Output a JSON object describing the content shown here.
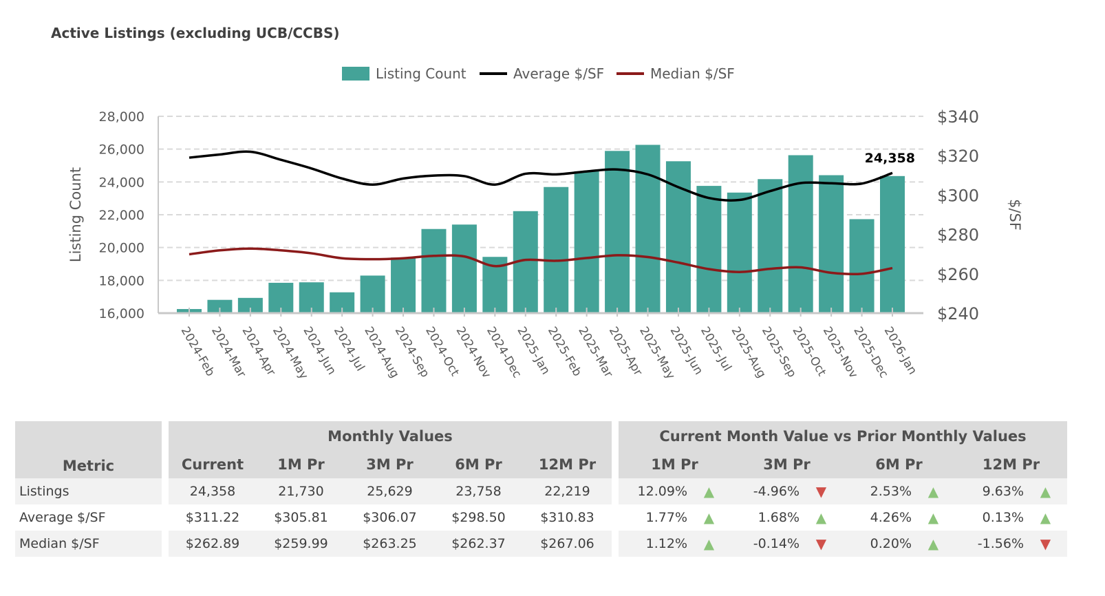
{
  "title": "Active Listings (excluding UCB/CCBS)",
  "chart_data": {
    "type": "bar+line",
    "title": "Active Listings (excluding UCB/CCBS)",
    "legend": {
      "placement": "top-center",
      "entries": [
        "Listing Count",
        "Average $/SF",
        "Median $/SF"
      ]
    },
    "categories": [
      "2024-Feb",
      "2024-Mar",
      "2024-Apr",
      "2024-May",
      "2024-Jun",
      "2024-Jul",
      "2024-Aug",
      "2024-Sep",
      "2024-Oct",
      "2024-Nov",
      "2024-Dec",
      "2025-Jan",
      "2025-Feb",
      "2025-Mar",
      "2025-Apr",
      "2025-May",
      "2025-Jun",
      "2025-Jul",
      "2025-Aug",
      "2025-Sep",
      "2025-Oct",
      "2025-Nov",
      "2025-Dec",
      "2026-Jan"
    ],
    "ylabel": "Listing Count",
    "y2label": "$/SF",
    "ylim": [
      16000,
      28000
    ],
    "y2lim": [
      240,
      340
    ],
    "yticks": [
      "16,000",
      "18,000",
      "20,000",
      "22,000",
      "24,000",
      "26,000",
      "28,000"
    ],
    "y2ticks": [
      "$240",
      "$260",
      "$280",
      "$300",
      "$320",
      "$340"
    ],
    "grid": true,
    "series": [
      {
        "name": "Listing Count",
        "type": "bar",
        "axis": "left",
        "color": "#44a398",
        "values": [
          16250,
          16810,
          16930,
          17850,
          17880,
          17270,
          18290,
          19390,
          21130,
          21400,
          19430,
          22219,
          23690,
          24650,
          25890,
          26260,
          25260,
          23758,
          23350,
          24170,
          25629,
          24410,
          21730,
          24358
        ]
      },
      {
        "name": "Average $/SF",
        "type": "line",
        "axis": "right",
        "color": "#000000",
        "values": [
          319.0,
          320.6,
          322.0,
          317.9,
          313.5,
          308.4,
          305.3,
          308.4,
          309.9,
          309.6,
          305.3,
          310.83,
          310.5,
          312.0,
          313.0,
          310.5,
          304.0,
          298.5,
          297.5,
          302.0,
          306.07,
          306.0,
          305.81,
          311.22
        ]
      },
      {
        "name": "Median $/SF",
        "type": "line",
        "axis": "right",
        "color": "#8b1a1a",
        "values": [
          269.9,
          271.9,
          272.8,
          271.9,
          270.4,
          267.9,
          267.4,
          267.9,
          269.1,
          268.8,
          263.9,
          267.06,
          266.6,
          268.0,
          269.4,
          268.5,
          265.7,
          262.37,
          260.9,
          262.5,
          263.25,
          260.5,
          259.99,
          262.89
        ]
      }
    ],
    "annotation": "24,358"
  },
  "table": {
    "group_monthly": "Monthly Values",
    "group_compare": "Current Month Value vs Prior Monthly Values",
    "metric_header": "Metric",
    "monthly_headers": [
      "Current",
      "1M Pr",
      "3M Pr",
      "6M Pr",
      "12M Pr"
    ],
    "compare_headers": [
      "1M Pr",
      "3M Pr",
      "6M Pr",
      "12M Pr"
    ],
    "rows": [
      {
        "metric": "Listings",
        "values": [
          "24,358",
          "21,730",
          "25,629",
          "23,758",
          "22,219"
        ],
        "changes": [
          {
            "v": "12.09%",
            "dir": "up"
          },
          {
            "v": "-4.96%",
            "dir": "down"
          },
          {
            "v": "2.53%",
            "dir": "up"
          },
          {
            "v": "9.63%",
            "dir": "up"
          }
        ]
      },
      {
        "metric": "Average $/SF",
        "values": [
          "$311.22",
          "$305.81",
          "$306.07",
          "$298.50",
          "$310.83"
        ],
        "changes": [
          {
            "v": "1.77%",
            "dir": "up"
          },
          {
            "v": "1.68%",
            "dir": "up"
          },
          {
            "v": "4.26%",
            "dir": "up"
          },
          {
            "v": "0.13%",
            "dir": "up"
          }
        ]
      },
      {
        "metric": "Median $/SF",
        "values": [
          "$262.89",
          "$259.99",
          "$263.25",
          "$262.37",
          "$267.06"
        ],
        "changes": [
          {
            "v": "1.12%",
            "dir": "up"
          },
          {
            "v": "-0.14%",
            "dir": "down"
          },
          {
            "v": "0.20%",
            "dir": "up"
          },
          {
            "v": "-1.56%",
            "dir": "down"
          }
        ]
      }
    ]
  }
}
